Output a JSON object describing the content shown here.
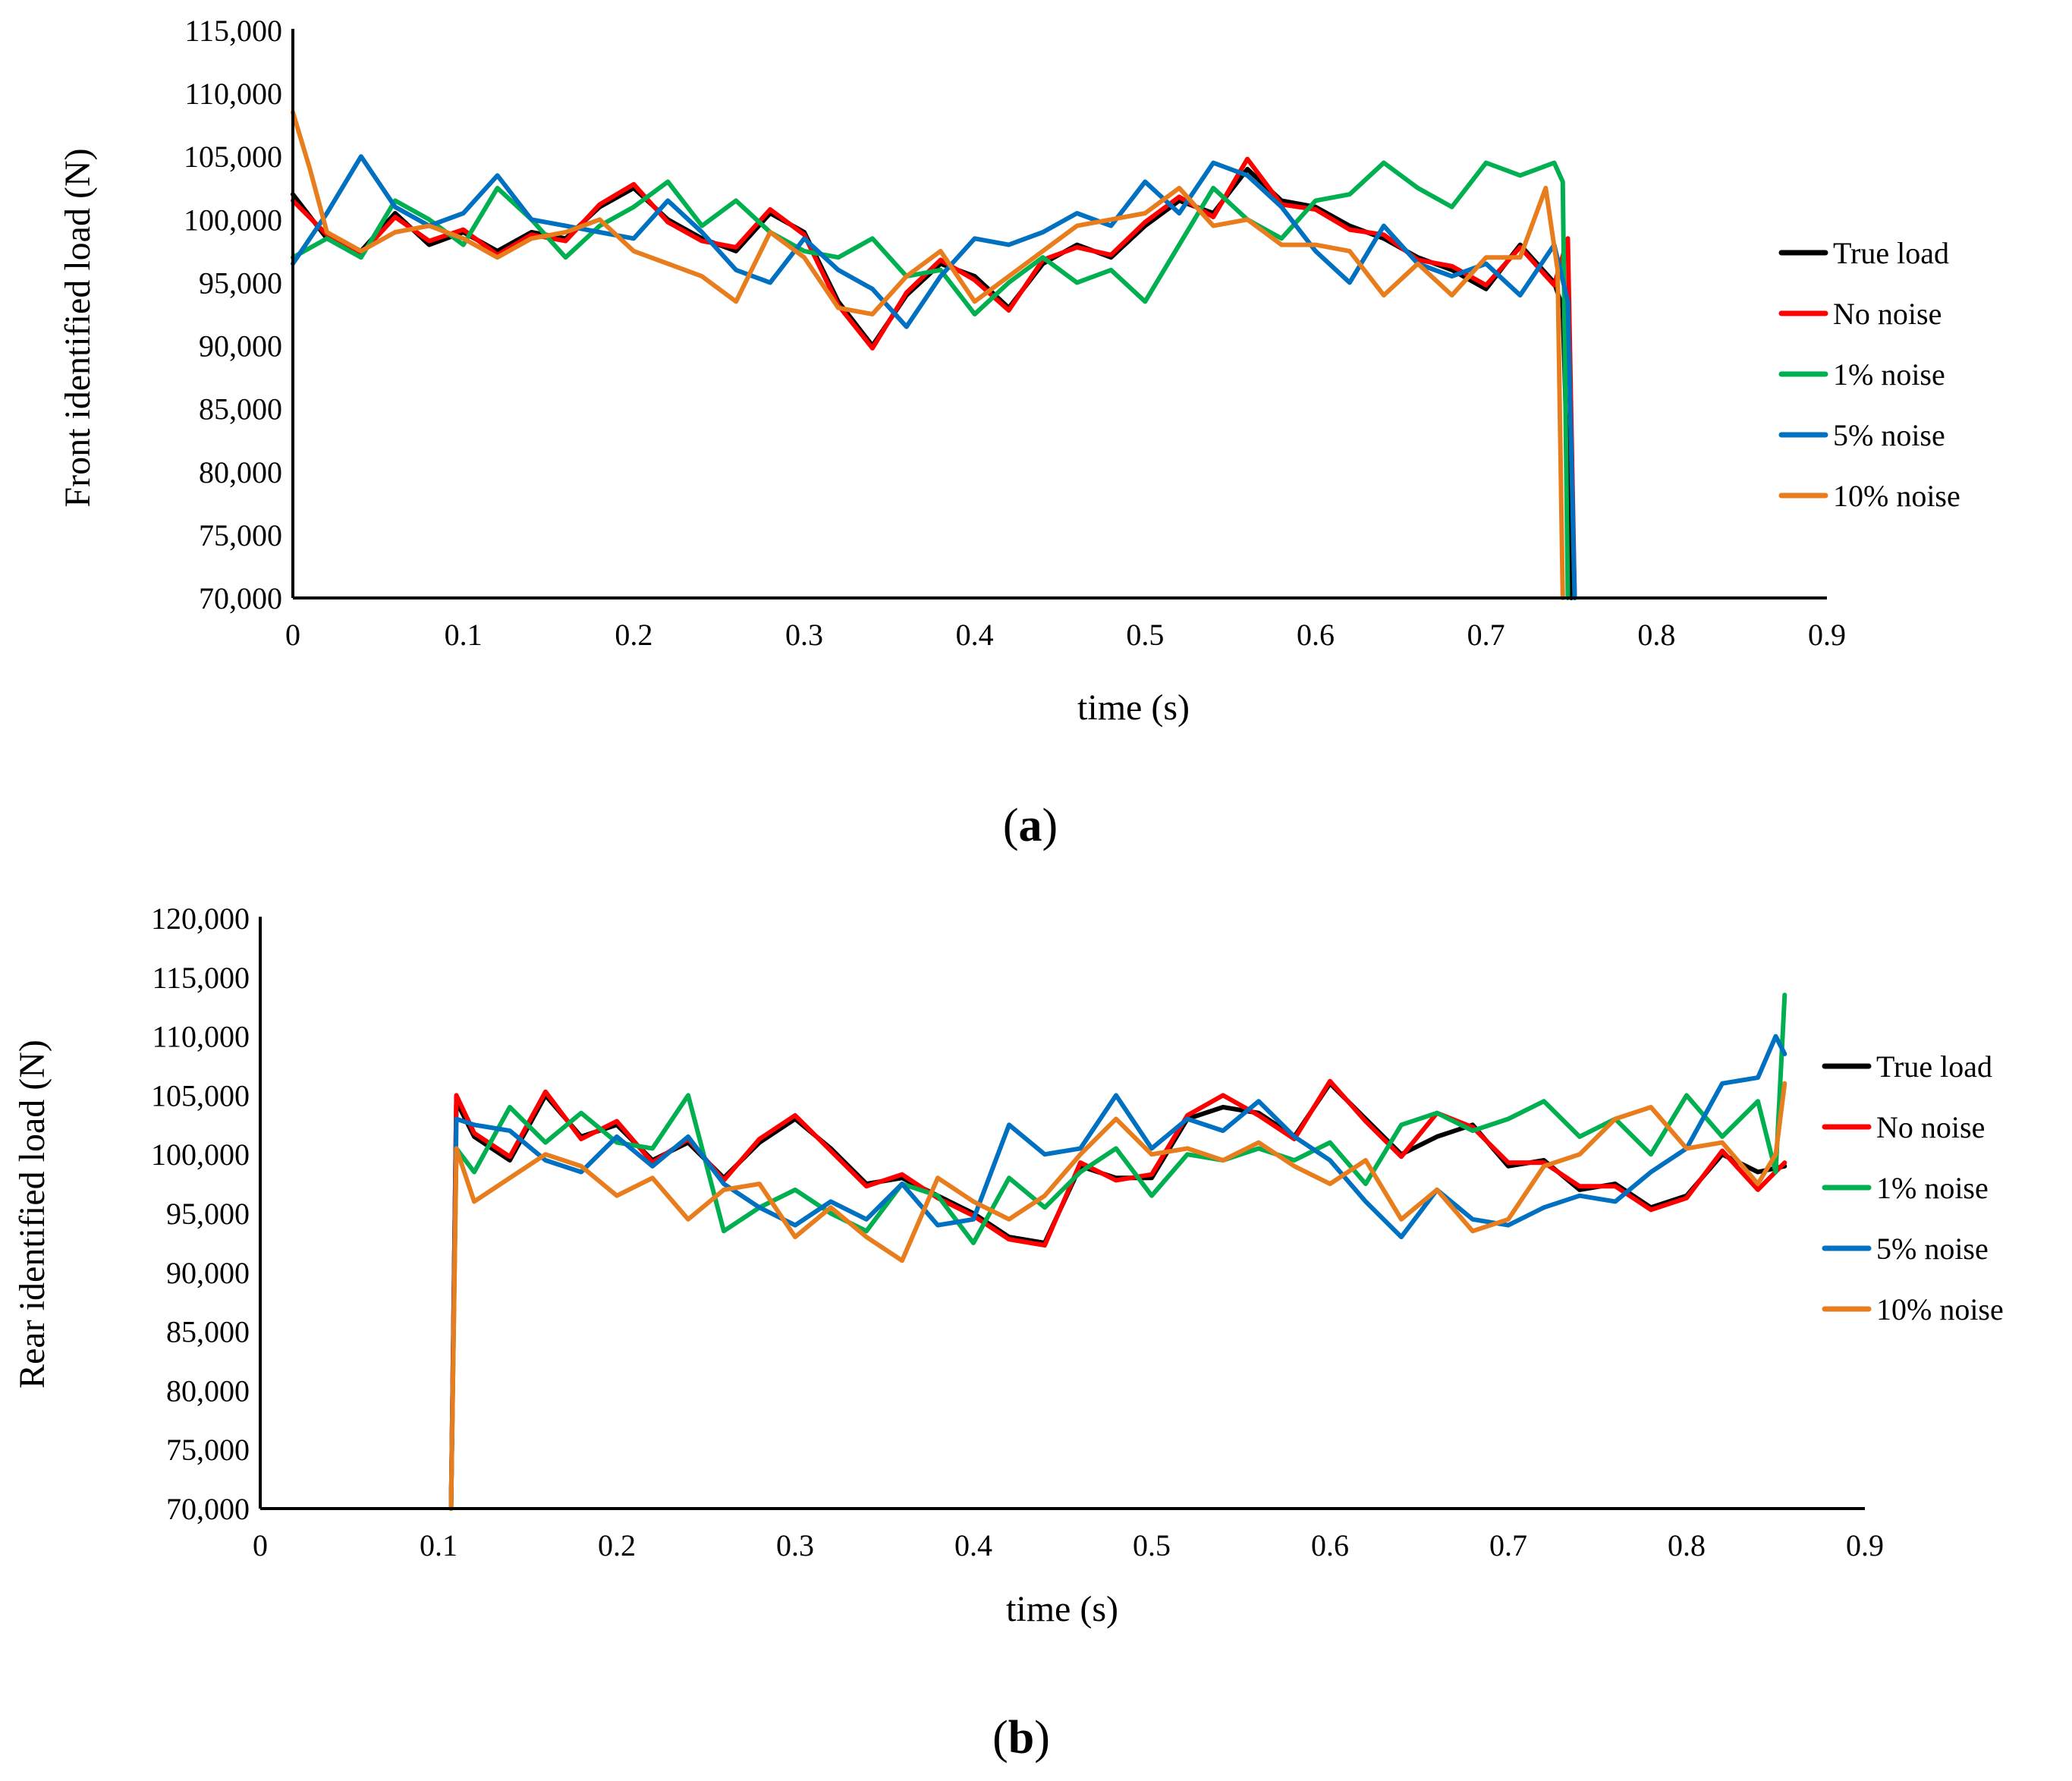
{
  "chart_data": [
    {
      "type": "line",
      "panel_label": "(a)",
      "panel_letter": "a",
      "xlabel": "time (s)",
      "ylabel": "Front identified load (N)",
      "xlim": [
        0,
        0.9
      ],
      "ylim": [
        70000,
        115000
      ],
      "x_ticks": [
        0,
        0.1,
        0.2,
        0.3,
        0.4,
        0.5,
        0.6,
        0.7,
        0.8,
        0.9
      ],
      "x_tick_labels": [
        "0",
        "0.1",
        "0.2",
        "0.3",
        "0.4",
        "0.5",
        "0.6",
        "0.7",
        "0.8",
        "0.9"
      ],
      "y_ticks": [
        70000,
        75000,
        80000,
        85000,
        90000,
        95000,
        100000,
        105000,
        110000,
        115000
      ],
      "y_tick_labels": [
        "70,000",
        "75,000",
        "80,000",
        "85,000",
        "90,000",
        "95,000",
        "100,000",
        "105,000",
        "110,000",
        "115,000"
      ],
      "grid": false,
      "legend_position": "right",
      "series": [
        {
          "name": "True load",
          "color": "#000000",
          "x": [
            0,
            0.02,
            0.04,
            0.06,
            0.08,
            0.1,
            0.12,
            0.14,
            0.16,
            0.18,
            0.2,
            0.22,
            0.24,
            0.26,
            0.28,
            0.3,
            0.32,
            0.34,
            0.36,
            0.38,
            0.4,
            0.42,
            0.44,
            0.46,
            0.48,
            0.5,
            0.52,
            0.54,
            0.56,
            0.58,
            0.6,
            0.62,
            0.64,
            0.66,
            0.68,
            0.7,
            0.72,
            0.74,
            0.745,
            0.75
          ],
          "y": [
            102000,
            98500,
            97500,
            100500,
            98000,
            99000,
            97500,
            99000,
            98500,
            101000,
            102500,
            100000,
            98500,
            97500,
            100500,
            99000,
            93500,
            90000,
            94000,
            96500,
            95500,
            93000,
            96500,
            98000,
            97000,
            99500,
            101500,
            100500,
            104000,
            101500,
            101000,
            99500,
            98500,
            97000,
            96000,
            94500,
            98000,
            95000,
            93000,
            70000
          ]
        },
        {
          "name": "No noise",
          "color": "#ff0000",
          "x": [
            0,
            0.02,
            0.04,
            0.06,
            0.08,
            0.1,
            0.12,
            0.14,
            0.16,
            0.18,
            0.2,
            0.22,
            0.24,
            0.26,
            0.28,
            0.3,
            0.32,
            0.34,
            0.36,
            0.38,
            0.4,
            0.42,
            0.44,
            0.46,
            0.48,
            0.5,
            0.52,
            0.54,
            0.56,
            0.58,
            0.6,
            0.62,
            0.64,
            0.66,
            0.68,
            0.7,
            0.72,
            0.74,
            0.748,
            0.752
          ],
          "y": [
            101500,
            98800,
            97300,
            100200,
            98300,
            99200,
            97200,
            98800,
            98300,
            101200,
            102800,
            99800,
            98300,
            97800,
            100800,
            98800,
            93200,
            89800,
            94200,
            96800,
            95200,
            92800,
            96800,
            97800,
            97200,
            99800,
            101800,
            100200,
            104800,
            101200,
            100800,
            99200,
            98800,
            96800,
            96300,
            94800,
            97800,
            94800,
            98500,
            70000
          ]
        },
        {
          "name": "1% noise",
          "color": "#00b050",
          "x": [
            0,
            0.02,
            0.04,
            0.06,
            0.08,
            0.1,
            0.12,
            0.14,
            0.16,
            0.18,
            0.2,
            0.22,
            0.24,
            0.26,
            0.28,
            0.3,
            0.32,
            0.34,
            0.36,
            0.38,
            0.4,
            0.42,
            0.44,
            0.46,
            0.48,
            0.5,
            0.52,
            0.54,
            0.56,
            0.58,
            0.6,
            0.62,
            0.64,
            0.66,
            0.68,
            0.7,
            0.72,
            0.74,
            0.745,
            0.748
          ],
          "y": [
            97000,
            98500,
            97000,
            101500,
            100000,
            98000,
            102500,
            100000,
            97000,
            99500,
            101000,
            103000,
            99500,
            101500,
            99000,
            97500,
            97000,
            98500,
            95500,
            96000,
            92500,
            95000,
            97000,
            95000,
            96000,
            93500,
            98000,
            102500,
            100000,
            98500,
            101500,
            102000,
            104500,
            102500,
            101000,
            104500,
            103500,
            104500,
            103000,
            70000
          ]
        },
        {
          "name": "5% noise",
          "color": "#0070c0",
          "x": [
            0,
            0.02,
            0.04,
            0.06,
            0.08,
            0.1,
            0.12,
            0.14,
            0.16,
            0.18,
            0.2,
            0.22,
            0.24,
            0.26,
            0.28,
            0.3,
            0.32,
            0.34,
            0.36,
            0.38,
            0.4,
            0.42,
            0.44,
            0.46,
            0.48,
            0.5,
            0.52,
            0.54,
            0.56,
            0.58,
            0.6,
            0.62,
            0.64,
            0.66,
            0.68,
            0.7,
            0.72,
            0.74,
            0.748,
            0.752
          ],
          "y": [
            96500,
            100500,
            105000,
            101000,
            99500,
            100500,
            103500,
            100000,
            99500,
            99000,
            98500,
            101500,
            99000,
            96000,
            95000,
            98500,
            96000,
            94500,
            91500,
            95500,
            98500,
            98000,
            99000,
            100500,
            99500,
            103000,
            100500,
            104500,
            103500,
            101000,
            97500,
            95000,
            99500,
            96500,
            95500,
            96500,
            94000,
            98000,
            93500,
            70000
          ]
        },
        {
          "name": "10% noise",
          "color": "#e87d1e",
          "x": [
            0,
            0.01,
            0.02,
            0.04,
            0.06,
            0.08,
            0.1,
            0.12,
            0.14,
            0.16,
            0.18,
            0.2,
            0.22,
            0.24,
            0.26,
            0.28,
            0.3,
            0.32,
            0.34,
            0.36,
            0.38,
            0.4,
            0.42,
            0.44,
            0.46,
            0.48,
            0.5,
            0.52,
            0.54,
            0.56,
            0.58,
            0.6,
            0.62,
            0.64,
            0.66,
            0.68,
            0.7,
            0.72,
            0.735,
            0.742,
            0.745
          ],
          "y": [
            108500,
            104000,
            99000,
            97500,
            99000,
            99500,
            98500,
            97000,
            98500,
            99000,
            100000,
            97500,
            96500,
            95500,
            93500,
            99000,
            97000,
            93000,
            92500,
            95500,
            97500,
            93500,
            95500,
            97500,
            99500,
            100000,
            100500,
            102500,
            99500,
            100000,
            98000,
            98000,
            97500,
            94000,
            96500,
            94000,
            97000,
            97000,
            102500,
            96000,
            70000
          ]
        }
      ]
    },
    {
      "type": "line",
      "panel_label": "(b)",
      "panel_letter": "b",
      "xlabel": "time (s)",
      "ylabel": "Rear identified load (N)",
      "xlim": [
        0,
        0.9
      ],
      "ylim": [
        70000,
        120000
      ],
      "x_ticks": [
        0,
        0.1,
        0.2,
        0.3,
        0.4,
        0.5,
        0.6,
        0.7,
        0.8,
        0.9
      ],
      "x_tick_labels": [
        "0",
        "0.1",
        "0.2",
        "0.3",
        "0.4",
        "0.5",
        "0.6",
        "0.7",
        "0.8",
        "0.9"
      ],
      "y_ticks": [
        70000,
        75000,
        80000,
        85000,
        90000,
        95000,
        100000,
        105000,
        110000,
        115000,
        120000
      ],
      "y_tick_labels": [
        "70,000",
        "75,000",
        "80,000",
        "85,000",
        "90,000",
        "95,000",
        "100,000",
        "105,000",
        "110,000",
        "115,000",
        "120,000"
      ],
      "grid": false,
      "legend_position": "right",
      "series": [
        {
          "name": "True load",
          "color": "#000000",
          "x": [
            0.107,
            0.11,
            0.12,
            0.14,
            0.16,
            0.18,
            0.2,
            0.22,
            0.24,
            0.26,
            0.28,
            0.3,
            0.32,
            0.34,
            0.36,
            0.38,
            0.4,
            0.42,
            0.44,
            0.46,
            0.48,
            0.5,
            0.52,
            0.54,
            0.56,
            0.58,
            0.6,
            0.62,
            0.64,
            0.66,
            0.68,
            0.7,
            0.72,
            0.74,
            0.76,
            0.78,
            0.8,
            0.82,
            0.84,
            0.855
          ],
          "y": [
            70000,
            104500,
            101500,
            99500,
            105000,
            101500,
            102500,
            99500,
            101000,
            98000,
            101000,
            103000,
            100500,
            97500,
            98000,
            96500,
            95000,
            93000,
            92500,
            99000,
            98000,
            98000,
            103000,
            104000,
            103500,
            101500,
            106000,
            103000,
            100000,
            101500,
            102500,
            99000,
            99500,
            97000,
            97500,
            95500,
            96500,
            100000,
            98500,
            99000
          ]
        },
        {
          "name": "No noise",
          "color": "#ff0000",
          "x": [
            0.107,
            0.11,
            0.12,
            0.14,
            0.16,
            0.18,
            0.2,
            0.22,
            0.24,
            0.26,
            0.28,
            0.3,
            0.32,
            0.34,
            0.36,
            0.38,
            0.4,
            0.42,
            0.44,
            0.46,
            0.48,
            0.5,
            0.52,
            0.54,
            0.56,
            0.58,
            0.6,
            0.62,
            0.64,
            0.66,
            0.68,
            0.7,
            0.72,
            0.74,
            0.76,
            0.78,
            0.8,
            0.82,
            0.84,
            0.855
          ],
          "y": [
            70000,
            105000,
            101800,
            99800,
            105300,
            101300,
            102800,
            99300,
            101300,
            97800,
            101300,
            103300,
            100300,
            97300,
            98300,
            96300,
            94800,
            92800,
            92300,
            99300,
            97800,
            98300,
            103300,
            105000,
            103300,
            101300,
            106200,
            102800,
            99800,
            103500,
            102300,
            99300,
            99300,
            97300,
            97300,
            95300,
            96300,
            100300,
            97000,
            99300
          ]
        },
        {
          "name": "1% noise",
          "color": "#00b050",
          "x": [
            0.107,
            0.11,
            0.12,
            0.14,
            0.16,
            0.18,
            0.2,
            0.22,
            0.24,
            0.26,
            0.28,
            0.3,
            0.32,
            0.34,
            0.36,
            0.38,
            0.4,
            0.42,
            0.44,
            0.46,
            0.48,
            0.5,
            0.52,
            0.54,
            0.56,
            0.58,
            0.6,
            0.62,
            0.64,
            0.66,
            0.68,
            0.7,
            0.72,
            0.74,
            0.76,
            0.78,
            0.8,
            0.82,
            0.84,
            0.85,
            0.855
          ],
          "y": [
            70000,
            100500,
            98500,
            104000,
            101000,
            103500,
            101000,
            100500,
            105000,
            93500,
            95500,
            97000,
            95000,
            93500,
            97500,
            96500,
            92500,
            98000,
            95500,
            98500,
            100500,
            96500,
            100000,
            99500,
            100500,
            99500,
            101000,
            97500,
            102500,
            103500,
            102000,
            103000,
            104500,
            101500,
            103000,
            100000,
            105000,
            101500,
            104500,
            98500,
            113500
          ]
        },
        {
          "name": "5% noise",
          "color": "#0070c0",
          "x": [
            0.107,
            0.11,
            0.12,
            0.14,
            0.16,
            0.18,
            0.2,
            0.22,
            0.24,
            0.26,
            0.28,
            0.3,
            0.32,
            0.34,
            0.36,
            0.38,
            0.4,
            0.42,
            0.44,
            0.46,
            0.48,
            0.5,
            0.52,
            0.54,
            0.56,
            0.58,
            0.6,
            0.62,
            0.64,
            0.66,
            0.68,
            0.7,
            0.72,
            0.74,
            0.76,
            0.78,
            0.8,
            0.82,
            0.84,
            0.85,
            0.855
          ],
          "y": [
            70000,
            103000,
            102500,
            102000,
            99500,
            98500,
            101500,
            99000,
            101500,
            97500,
            95500,
            94000,
            96000,
            94500,
            97500,
            94000,
            94500,
            102500,
            100000,
            100500,
            105000,
            100500,
            103000,
            102000,
            104500,
            101500,
            99500,
            96000,
            93000,
            97000,
            94500,
            94000,
            95500,
            96500,
            96000,
            98500,
            100500,
            106000,
            106500,
            110000,
            108500
          ]
        },
        {
          "name": "10% noise",
          "color": "#e87d1e",
          "x": [
            0.107,
            0.11,
            0.12,
            0.14,
            0.16,
            0.18,
            0.2,
            0.22,
            0.24,
            0.26,
            0.28,
            0.3,
            0.32,
            0.34,
            0.36,
            0.38,
            0.4,
            0.42,
            0.44,
            0.46,
            0.48,
            0.5,
            0.52,
            0.54,
            0.56,
            0.58,
            0.6,
            0.62,
            0.64,
            0.66,
            0.68,
            0.7,
            0.72,
            0.74,
            0.76,
            0.78,
            0.8,
            0.82,
            0.84,
            0.85,
            0.855
          ],
          "y": [
            70000,
            100500,
            96000,
            98000,
            100000,
            99000,
            96500,
            98000,
            94500,
            97000,
            97500,
            93000,
            95500,
            93000,
            91000,
            98000,
            96000,
            94500,
            96500,
            100000,
            103000,
            100000,
            100500,
            99500,
            101000,
            99000,
            97500,
            99500,
            94500,
            97000,
            93500,
            94500,
            99000,
            100000,
            103000,
            104000,
            100500,
            101000,
            97500,
            100000,
            106000
          ]
        }
      ]
    }
  ]
}
